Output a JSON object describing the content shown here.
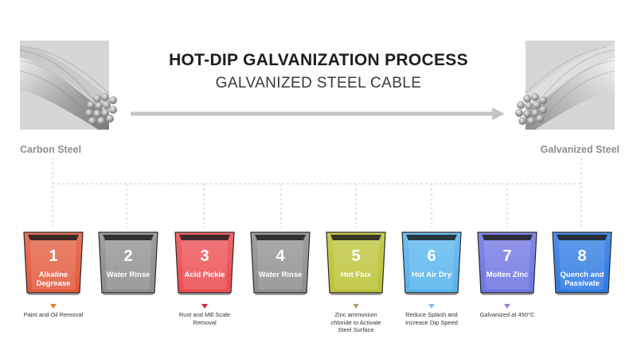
{
  "title": "HOT-DIP GALVANIZATION PROCESS",
  "subtitle": "GALVANIZED STEEL CABLE",
  "left_label": "Carbon Steel",
  "right_label": "Galvanized Steel",
  "steps": [
    {
      "num": "1",
      "label": "Alkaline Degrease",
      "color": "#e2593a",
      "note": "Paint and Oil Removal",
      "marker_color": "#e8812f"
    },
    {
      "num": "2",
      "label": "Water Rinse",
      "color": "#8e8e8e",
      "note": "",
      "marker_color": ""
    },
    {
      "num": "3",
      "label": "Acid Pickle",
      "color": "#ec4b4f",
      "note": "Rust and Mill Scale Removal",
      "marker_color": "#d8283a"
    },
    {
      "num": "4",
      "label": "Water Rinse",
      "color": "#8e8e8e",
      "note": "",
      "marker_color": ""
    },
    {
      "num": "5",
      "label": "Hot Flux",
      "color": "#bcc335",
      "note": "Zinc ammonium chloride to Activate Steel Surface",
      "marker_color": "#b2a26a"
    },
    {
      "num": "6",
      "label": "Hot Air Dry",
      "color": "#55b3ec",
      "note": "Reduce Splash and Increase Dip Speed",
      "marker_color": "#8fbbe6"
    },
    {
      "num": "7",
      "label": "Molten Zinc",
      "color": "#6e74e2",
      "note": "Galvanized at 450°C",
      "marker_color": "#8e86d6"
    },
    {
      "num": "8",
      "label": "Quench and Passivate",
      "color": "#2e7ae2",
      "note": "",
      "marker_color": ""
    }
  ],
  "icons": {
    "left_cable": "steel-cable-icon",
    "right_cable": "galvanized-cable-icon",
    "arrow": "process-arrow"
  }
}
